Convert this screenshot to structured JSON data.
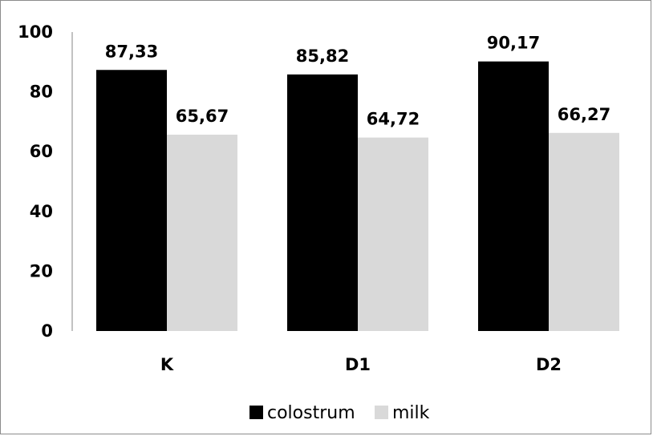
{
  "chart_data": {
    "type": "bar",
    "categories": [
      "K",
      "D1",
      "D2"
    ],
    "series": [
      {
        "name": "colostrum",
        "values": [
          "87,33",
          "85,82",
          "90,17"
        ],
        "color": "#000000"
      },
      {
        "name": "milk",
        "values": [
          "65,67",
          "64,72",
          "66,27"
        ],
        "color": "#d9d9d9"
      }
    ],
    "ylim": [
      0,
      100
    ],
    "yticks": [
      "0",
      "20",
      "40",
      "60",
      "80",
      "100"
    ],
    "grid": false,
    "legend_position": "bottom",
    "title": "",
    "xlabel": "",
    "ylabel": ""
  }
}
